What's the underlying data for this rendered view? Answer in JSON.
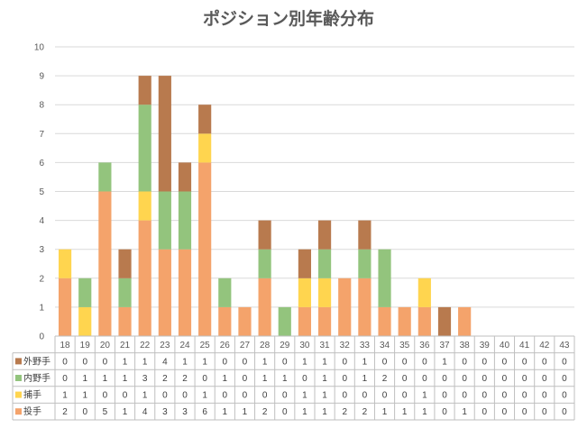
{
  "chart_data": {
    "type": "bar",
    "stacked": true,
    "title": "ポジション別年齢分布",
    "categories": [
      "18",
      "19",
      "20",
      "21",
      "22",
      "23",
      "24",
      "25",
      "26",
      "27",
      "28",
      "29",
      "30",
      "31",
      "32",
      "33",
      "34",
      "35",
      "36",
      "37",
      "38",
      "39",
      "40",
      "41",
      "42",
      "43"
    ],
    "ylim": [
      0,
      10
    ],
    "yticks": [
      "0",
      "1",
      "2",
      "3",
      "4",
      "5",
      "6",
      "7",
      "8",
      "9",
      "10"
    ],
    "grid": true,
    "legend": "data-table-left",
    "series": [
      {
        "name": "投手",
        "color": "#F4A36B",
        "values": [
          2,
          0,
          5,
          1,
          4,
          3,
          3,
          6,
          1,
          1,
          2,
          0,
          1,
          1,
          2,
          2,
          1,
          1,
          1,
          0,
          1,
          0,
          0,
          0,
          0,
          0
        ]
      },
      {
        "name": "捕手",
        "color": "#FFD54F",
        "values": [
          1,
          1,
          0,
          0,
          1,
          0,
          0,
          1,
          0,
          0,
          0,
          0,
          1,
          1,
          0,
          0,
          0,
          0,
          1,
          0,
          0,
          0,
          0,
          0,
          0,
          0
        ]
      },
      {
        "name": "内野手",
        "color": "#93C47D",
        "values": [
          0,
          1,
          1,
          1,
          3,
          2,
          2,
          0,
          1,
          0,
          1,
          1,
          0,
          1,
          0,
          1,
          2,
          0,
          0,
          0,
          0,
          0,
          0,
          0,
          0,
          0
        ]
      },
      {
        "name": "外野手",
        "color": "#B87A4E",
        "values": [
          0,
          0,
          0,
          1,
          1,
          4,
          1,
          1,
          0,
          0,
          1,
          0,
          1,
          1,
          0,
          1,
          0,
          0,
          0,
          1,
          0,
          0,
          0,
          0,
          0,
          0
        ]
      }
    ]
  }
}
